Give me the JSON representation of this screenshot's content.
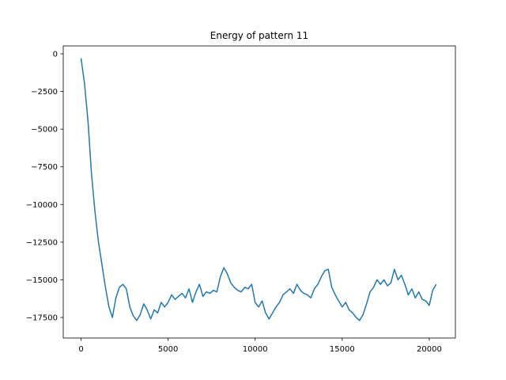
{
  "chart_data": {
    "type": "line",
    "title": "Energy of pattern 11",
    "color": "#1f77b4",
    "x": [
      0,
      200,
      400,
      600,
      800,
      1000,
      1200,
      1400,
      1600,
      1800,
      2000,
      2200,
      2400,
      2600,
      2800,
      3000,
      3200,
      3400,
      3600,
      3800,
      4000,
      4200,
      4400,
      4600,
      4800,
      5000,
      5200,
      5400,
      5600,
      5800,
      6000,
      6200,
      6400,
      6600,
      6800,
      7000,
      7200,
      7400,
      7600,
      7800,
      8000,
      8200,
      8400,
      8600,
      8800,
      9000,
      9200,
      9400,
      9600,
      9800,
      10000,
      10200,
      10400,
      10600,
      10800,
      11000,
      11200,
      11400,
      11600,
      11800,
      12000,
      12200,
      12400,
      12600,
      12800,
      13000,
      13200,
      13400,
      13600,
      13800,
      14000,
      14200,
      14400,
      14600,
      14800,
      15000,
      15200,
      15400,
      15600,
      15800,
      16000,
      16200,
      16400,
      16600,
      16800,
      17000,
      17200,
      17400,
      17600,
      17800,
      18000,
      18200,
      18400,
      18600,
      18800,
      19000,
      19200,
      19400,
      19600,
      19800,
      20000,
      20200,
      20400
    ],
    "values": [
      -300,
      -2000,
      -4500,
      -8000,
      -10500,
      -12500,
      -14000,
      -15500,
      -16800,
      -17500,
      -16200,
      -15500,
      -15300,
      -15600,
      -16800,
      -17400,
      -17700,
      -17300,
      -16600,
      -17000,
      -17600,
      -17000,
      -17200,
      -16500,
      -16800,
      -16500,
      -16000,
      -16300,
      -16100,
      -15900,
      -16200,
      -15600,
      -16500,
      -15800,
      -15300,
      -16100,
      -15800,
      -15900,
      -15700,
      -15800,
      -14800,
      -14200,
      -14600,
      -15200,
      -15500,
      -15700,
      -15800,
      -15500,
      -15600,
      -15300,
      -16500,
      -16800,
      -16400,
      -17200,
      -17600,
      -17200,
      -16800,
      -16500,
      -16000,
      -15800,
      -15600,
      -15900,
      -15300,
      -15700,
      -15900,
      -16000,
      -16200,
      -15600,
      -15300,
      -14800,
      -14400,
      -14300,
      -15500,
      -16000,
      -16400,
      -16800,
      -16500,
      -17000,
      -17200,
      -17500,
      -17700,
      -17300,
      -16600,
      -15800,
      -15500,
      -15000,
      -15300,
      -15000,
      -15400,
      -15200,
      -14300,
      -15000,
      -14700,
      -15300,
      -16000,
      -15600,
      -16200,
      -15800,
      -16300,
      -16400,
      -16700,
      -15700,
      -15300
    ],
    "xlim": [
      -1024,
      21503
    ],
    "ylim": [
      -18866,
      525
    ],
    "xticks": [
      0,
      5000,
      10000,
      15000,
      20000
    ],
    "yticks": [
      0,
      {
        "value": -2500,
        "label": "−2500"
      },
      {
        "value": -5000,
        "label": "−5000"
      },
      {
        "value": -7500,
        "label": "−7500"
      },
      {
        "value": -10000,
        "label": "−10000"
      },
      {
        "value": -12500,
        "label": "−12500"
      },
      {
        "value": -15000,
        "label": "−15000"
      },
      {
        "value": -17500,
        "label": "−17500"
      }
    ]
  }
}
